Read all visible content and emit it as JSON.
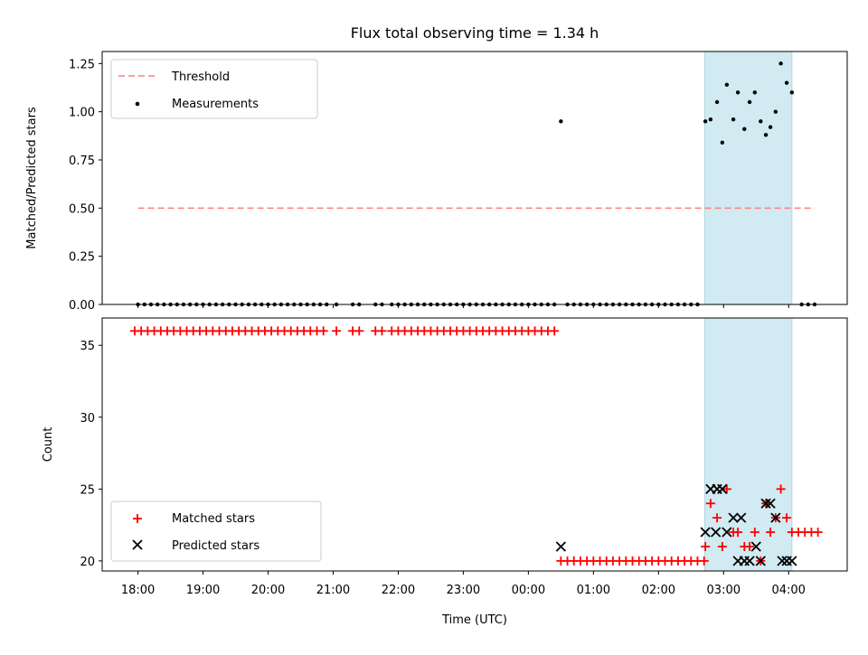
{
  "chart_data": {
    "type": "scatter",
    "title": "Flux total observing time = 1.34 h",
    "xlabel": "Time (UTC)",
    "x_tick_labels": [
      "18:00",
      "19:00",
      "20:00",
      "21:00",
      "22:00",
      "23:00",
      "00:00",
      "01:00",
      "02:00",
      "03:00",
      "04:00"
    ],
    "x_tick_hours": [
      0,
      1,
      2,
      3,
      4,
      5,
      6,
      7,
      8,
      9,
      10
    ],
    "xlim_hours": [
      -0.55,
      10.9
    ],
    "shaded_region_hours": [
      8.71,
      10.05
    ],
    "colors": {
      "threshold": "#ff7f7f",
      "measurements": "#000000",
      "matched": "#ff0000",
      "predicted": "#000000",
      "shade": "#add8e6"
    },
    "panels": [
      {
        "id": "ratio",
        "ylabel": "Matched/Predicted stars",
        "ylim": [
          0,
          1.3125
        ],
        "y_tick_labels": [
          "0.00",
          "0.25",
          "0.50",
          "0.75",
          "1.00",
          "1.25"
        ],
        "y_tick_values": [
          0,
          0.25,
          0.5,
          0.75,
          1.0,
          1.25
        ],
        "legend": [
          "Threshold",
          "Measurements"
        ],
        "threshold": {
          "value": 0.5,
          "x_start_hours": 0,
          "x_end_hours": 10.4
        },
        "measurements": {
          "zero_hours": [
            0.0,
            0.1,
            0.2,
            0.3,
            0.4,
            0.5,
            0.6,
            0.7,
            0.8,
            0.9,
            1.0,
            1.1,
            1.2,
            1.3,
            1.4,
            1.5,
            1.6,
            1.7,
            1.8,
            1.9,
            2.0,
            2.1,
            2.2,
            2.3,
            2.4,
            2.5,
            2.6,
            2.7,
            2.8,
            2.9,
            3.05,
            3.3,
            3.4,
            3.65,
            3.75,
            3.9,
            4.0,
            4.1,
            4.2,
            4.3,
            4.4,
            4.5,
            4.6,
            4.7,
            4.8,
            4.9,
            5.0,
            5.1,
            5.2,
            5.3,
            5.4,
            5.5,
            5.6,
            5.7,
            5.8,
            5.9,
            6.0,
            6.1,
            6.2,
            6.3,
            6.4,
            6.6,
            6.7,
            6.8,
            6.9,
            7.0,
            7.1,
            7.2,
            7.3,
            7.4,
            7.5,
            7.6,
            7.7,
            7.8,
            7.9,
            8.0,
            8.1,
            8.2,
            8.3,
            8.4,
            8.5,
            8.6,
            10.2,
            10.3,
            10.4
          ],
          "points": [
            {
              "x": 6.5,
              "y": 0.95
            },
            {
              "x": 8.72,
              "y": 0.95
            },
            {
              "x": 8.8,
              "y": 0.96
            },
            {
              "x": 8.9,
              "y": 1.05
            },
            {
              "x": 8.98,
              "y": 0.84
            },
            {
              "x": 9.05,
              "y": 1.14
            },
            {
              "x": 9.15,
              "y": 0.96
            },
            {
              "x": 9.22,
              "y": 1.1
            },
            {
              "x": 9.32,
              "y": 0.91
            },
            {
              "x": 9.4,
              "y": 1.05
            },
            {
              "x": 9.48,
              "y": 1.1
            },
            {
              "x": 9.57,
              "y": 0.95
            },
            {
              "x": 9.65,
              "y": 0.88
            },
            {
              "x": 9.72,
              "y": 0.92
            },
            {
              "x": 9.8,
              "y": 1.0
            },
            {
              "x": 9.88,
              "y": 1.25
            },
            {
              "x": 9.97,
              "y": 1.15
            },
            {
              "x": 10.05,
              "y": 1.1
            }
          ]
        }
      },
      {
        "id": "counts",
        "ylabel": "Count",
        "ylim": [
          19.3,
          36.9
        ],
        "y_tick_labels": [
          "20",
          "25",
          "30",
          "35"
        ],
        "y_tick_values": [
          20,
          25,
          30,
          35
        ],
        "legend": [
          "Matched stars",
          "Predicted stars"
        ],
        "matched": {
          "constant_runs": [
            {
              "y": 36,
              "hours": [
                -0.05,
                0.05,
                0.15,
                0.25,
                0.35,
                0.45,
                0.55,
                0.65,
                0.75,
                0.85,
                0.95,
                1.05,
                1.15,
                1.25,
                1.35,
                1.45,
                1.55,
                1.65,
                1.75,
                1.85,
                1.95,
                2.05,
                2.15,
                2.25,
                2.35,
                2.45,
                2.55,
                2.65,
                2.75,
                2.85,
                3.05,
                3.3,
                3.4,
                3.65,
                3.75,
                3.9,
                4.0,
                4.1,
                4.2,
                4.3,
                4.4,
                4.5,
                4.6,
                4.7,
                4.8,
                4.9,
                5.0,
                5.1,
                5.2,
                5.3,
                5.4,
                5.5,
                5.6,
                5.7,
                5.8,
                5.9,
                6.0,
                6.1,
                6.2,
                6.3,
                6.4
              ]
            },
            {
              "y": 20,
              "hours": [
                6.5,
                6.6,
                6.7,
                6.8,
                6.9,
                7.0,
                7.1,
                7.2,
                7.3,
                7.4,
                7.5,
                7.6,
                7.7,
                7.8,
                7.9,
                8.0,
                8.1,
                8.2,
                8.3,
                8.4,
                8.5,
                8.6,
                8.7
              ]
            }
          ],
          "points": [
            {
              "x": 8.72,
              "y": 21
            },
            {
              "x": 8.8,
              "y": 24
            },
            {
              "x": 8.9,
              "y": 23
            },
            {
              "x": 8.98,
              "y": 21
            },
            {
              "x": 9.05,
              "y": 25
            },
            {
              "x": 9.15,
              "y": 22
            },
            {
              "x": 9.22,
              "y": 22
            },
            {
              "x": 9.32,
              "y": 21
            },
            {
              "x": 9.4,
              "y": 21
            },
            {
              "x": 9.48,
              "y": 22
            },
            {
              "x": 9.57,
              "y": 20
            },
            {
              "x": 9.65,
              "y": 24
            },
            {
              "x": 9.72,
              "y": 22
            },
            {
              "x": 9.8,
              "y": 23
            },
            {
              "x": 9.88,
              "y": 25
            },
            {
              "x": 9.97,
              "y": 23
            },
            {
              "x": 10.05,
              "y": 22
            },
            {
              "x": 10.15,
              "y": 22
            },
            {
              "x": 10.25,
              "y": 22
            },
            {
              "x": 10.35,
              "y": 22
            },
            {
              "x": 10.45,
              "y": 22
            }
          ]
        },
        "predicted": {
          "points": [
            {
              "x": 6.5,
              "y": 21
            },
            {
              "x": 8.72,
              "y": 22
            },
            {
              "x": 8.8,
              "y": 25
            },
            {
              "x": 8.9,
              "y": 25
            },
            {
              "x": 8.98,
              "y": 25
            },
            {
              "x": 8.88,
              "y": 22
            },
            {
              "x": 9.05,
              "y": 22
            },
            {
              "x": 9.15,
              "y": 23
            },
            {
              "x": 9.22,
              "y": 20
            },
            {
              "x": 9.27,
              "y": 23
            },
            {
              "x": 9.32,
              "y": 20
            },
            {
              "x": 9.4,
              "y": 20
            },
            {
              "x": 9.5,
              "y": 21
            },
            {
              "x": 9.57,
              "y": 20
            },
            {
              "x": 9.65,
              "y": 24
            },
            {
              "x": 9.72,
              "y": 24
            },
            {
              "x": 9.8,
              "y": 23
            },
            {
              "x": 9.9,
              "y": 20
            },
            {
              "x": 9.97,
              "y": 20
            },
            {
              "x": 10.05,
              "y": 20
            }
          ]
        }
      }
    ]
  }
}
